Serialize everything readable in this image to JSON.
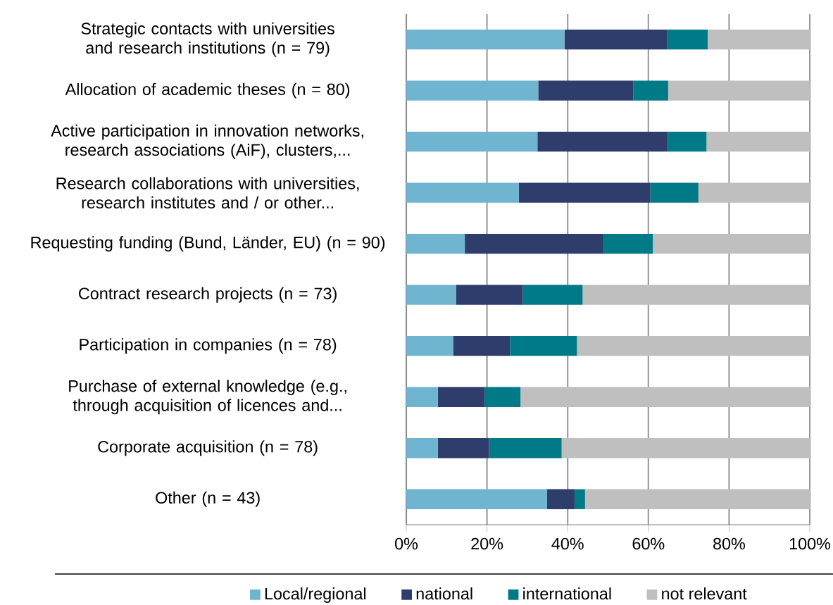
{
  "chart_data": {
    "type": "bar",
    "orientation": "horizontal",
    "stacked": true,
    "categories": [
      "Strategic contacts with universities and research institutions (n = 79)",
      "Allocation of academic theses (n = 80)",
      "Active participation in innovation networks, research associations (AiF), clusters,...",
      "Research collaborations with universities, research institutes and / or other...",
      "Requesting funding (Bund, Länder, EU) (n = 90)",
      "Contract research projects (n = 73)",
      "Participation in companies (n = 78)",
      "Purchase of external knowledge (e.g., through acquisition of licences and...",
      "Corporate acquisition (n = 78)",
      "Other (n = 43)"
    ],
    "series": [
      {
        "name": "Local/regional",
        "color": "#6fb5cf",
        "values": [
          39.2,
          32.7,
          32.5,
          27.9,
          14.5,
          12.3,
          11.6,
          7.8,
          7.8,
          34.9
        ]
      },
      {
        "name": "national",
        "color": "#2e3d6b",
        "values": [
          25.5,
          23.6,
          32.3,
          32.6,
          34.4,
          16.6,
          14.1,
          11.6,
          12.7,
          6.8
        ]
      },
      {
        "name": "international",
        "color": "#007a87",
        "values": [
          10.0,
          8.6,
          9.6,
          11.9,
          12.2,
          14.8,
          16.6,
          8.9,
          18.0,
          2.6
        ]
      },
      {
        "name": "not relevant",
        "color": "#bfbfbf",
        "values": [
          25.3,
          35.1,
          25.6,
          27.6,
          38.9,
          56.3,
          57.7,
          71.7,
          61.5,
          55.7
        ]
      }
    ],
    "xlim": [
      0,
      100
    ],
    "xticks": [
      {
        "value": 0,
        "label": "0%"
      },
      {
        "value": 20,
        "label": "20%"
      },
      {
        "value": 40,
        "label": "40%"
      },
      {
        "value": 60,
        "label": "60%"
      },
      {
        "value": 80,
        "label": "80%"
      },
      {
        "value": 100,
        "label": "100%"
      }
    ],
    "grid": "x",
    "legend": "bottom"
  }
}
